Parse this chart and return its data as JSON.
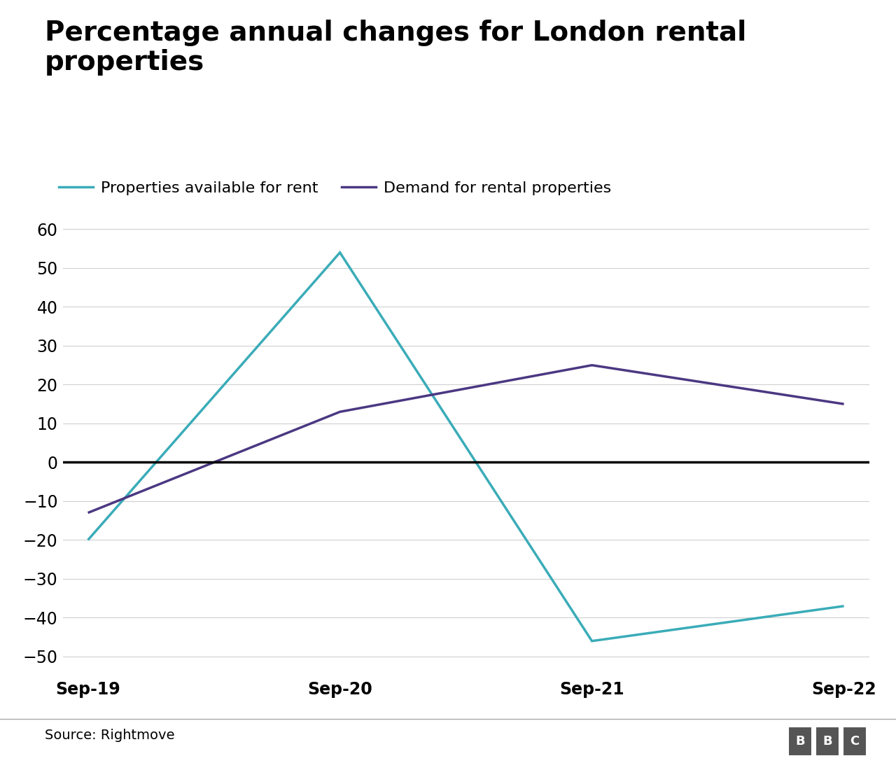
{
  "title": "Percentage annual changes for London rental\nproperties",
  "x_labels": [
    "Sep-19",
    "Sep-20",
    "Sep-21",
    "Sep-22"
  ],
  "x_values": [
    0,
    1,
    2,
    3
  ],
  "line1_label": "Properties available for rent",
  "line1_color": "#3aacb8",
  "line1_values": [
    -20,
    54,
    -46,
    -37
  ],
  "line2_label": "Demand for rental properties",
  "line2_color": "#4b3882",
  "line2_values": [
    -13,
    13,
    25,
    15
  ],
  "ylim": [
    -55,
    65
  ],
  "yticks": [
    -50,
    -40,
    -30,
    -20,
    -10,
    0,
    10,
    20,
    30,
    40,
    50,
    60
  ],
  "ytick_labels": [
    "−50",
    "−40",
    "−30",
    "−20",
    "−10",
    "0",
    "10",
    "20",
    "30",
    "40",
    "50",
    "60"
  ],
  "source_text": "Source: Rightmove",
  "background_color": "#ffffff",
  "zero_line_color": "#000000",
  "line_width": 2.5,
  "title_fontsize": 28,
  "legend_fontsize": 16,
  "tick_fontsize": 17,
  "source_fontsize": 14
}
